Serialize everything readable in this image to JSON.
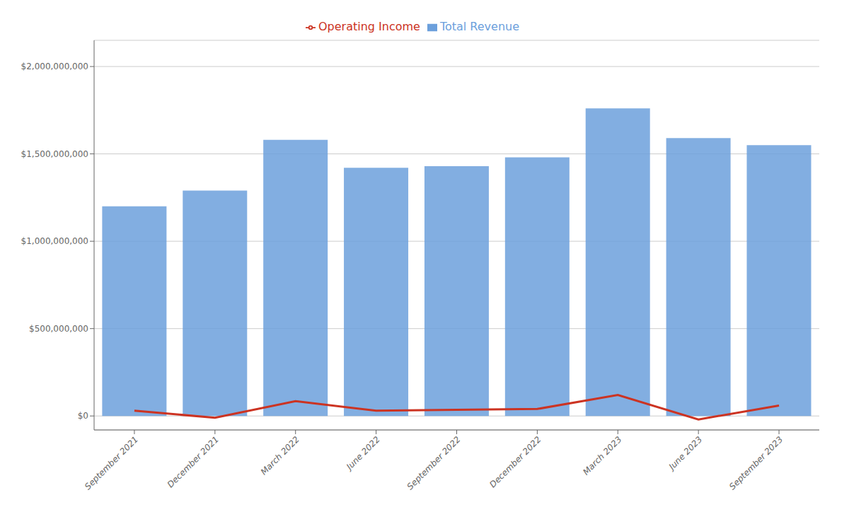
{
  "chart_data": {
    "type": "bar",
    "categories": [
      "September 2021",
      "December 2021",
      "March 2022",
      "June 2022",
      "September 2022",
      "December 2022",
      "March 2023",
      "June 2023",
      "September 2023"
    ],
    "series": [
      {
        "name": "Total Revenue",
        "type": "bar",
        "color": "#6ca0dc",
        "values": [
          1200000000,
          1290000000,
          1580000000,
          1420000000,
          1430000000,
          1480000000,
          1760000000,
          1590000000,
          1550000000
        ]
      },
      {
        "name": "Operating Income",
        "type": "line",
        "color": "#CC3322",
        "values": [
          30000000,
          -10000000,
          85000000,
          30000000,
          35000000,
          40000000,
          120000000,
          -20000000,
          60000000
        ]
      }
    ],
    "ylim": [
      -80000000,
      2150000000
    ],
    "yticks": [
      {
        "value": 0,
        "label": "$0"
      },
      {
        "value": 500000000,
        "label": "$500,000,000"
      },
      {
        "value": 1000000000,
        "label": "$1,000,000,000"
      },
      {
        "value": 1500000000,
        "label": "$1,500,000,000"
      },
      {
        "value": 2000000000,
        "label": "$2,000,000,000"
      }
    ],
    "grid": true,
    "legend": "top"
  }
}
